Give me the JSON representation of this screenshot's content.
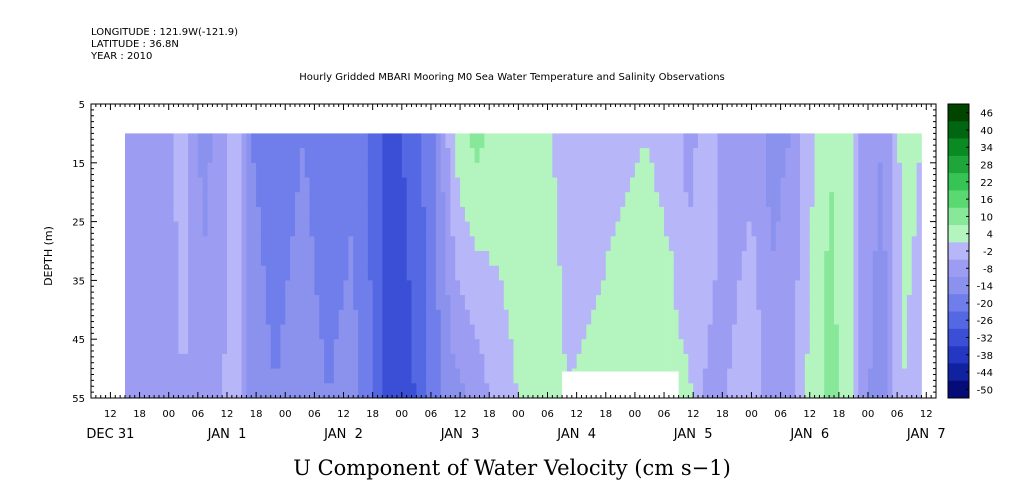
{
  "header": {
    "longitude": "LONGITUDE : 121.9W(-121.9)",
    "latitude": "LATITUDE : 36.8N",
    "year": "YEAR : 2010",
    "title": "Hourly Gridded MBARI Mooring M0 Sea Water Temperature and Salinity Observations"
  },
  "chart_data": {
    "type": "heatmap",
    "title": "Hourly Gridded MBARI Mooring M0 Sea Water Temperature and Salinity Observations",
    "xlabel": "U Component of Water Velocity (cm s−1)",
    "ylabel": "DEPTH (m)",
    "y_reversed": true,
    "ylim": [
      5,
      55
    ],
    "y_ticks": [
      5,
      15,
      25,
      35,
      45,
      55
    ],
    "x_hours_range": [
      -16,
      158
    ],
    "x_ticks": [
      {
        "h": -12,
        "label": "12"
      },
      {
        "h": -6,
        "label": "18"
      },
      {
        "h": 0,
        "label": "00"
      },
      {
        "h": 6,
        "label": "06"
      },
      {
        "h": 12,
        "label": "12"
      },
      {
        "h": 18,
        "label": "18"
      },
      {
        "h": 24,
        "label": "00"
      },
      {
        "h": 30,
        "label": "06"
      },
      {
        "h": 36,
        "label": "12"
      },
      {
        "h": 42,
        "label": "18"
      },
      {
        "h": 48,
        "label": "00"
      },
      {
        "h": 54,
        "label": "06"
      },
      {
        "h": 60,
        "label": "12"
      },
      {
        "h": 66,
        "label": "18"
      },
      {
        "h": 72,
        "label": "00"
      },
      {
        "h": 78,
        "label": "06"
      },
      {
        "h": 84,
        "label": "12"
      },
      {
        "h": 90,
        "label": "18"
      },
      {
        "h": 96,
        "label": "00"
      },
      {
        "h": 102,
        "label": "06"
      },
      {
        "h": 108,
        "label": "12"
      },
      {
        "h": 114,
        "label": "18"
      },
      {
        "h": 120,
        "label": "00"
      },
      {
        "h": 126,
        "label": "06"
      },
      {
        "h": 132,
        "label": "12"
      },
      {
        "h": 138,
        "label": "18"
      },
      {
        "h": 144,
        "label": "00"
      },
      {
        "h": 150,
        "label": "06"
      },
      {
        "h": 156,
        "label": "12"
      }
    ],
    "day_labels": [
      {
        "h": -12,
        "label": "DEC 31"
      },
      {
        "h": 12,
        "label": "JAN  1"
      },
      {
        "h": 36,
        "label": "JAN  2"
      },
      {
        "h": 60,
        "label": "JAN  3"
      },
      {
        "h": 84,
        "label": "JAN  4"
      },
      {
        "h": 108,
        "label": "JAN  5"
      },
      {
        "h": 132,
        "label": "JAN  6"
      },
      {
        "h": 156,
        "label": "JAN  7"
      }
    ],
    "data_extent": {
      "x_start_hour": -9,
      "x_end_hour": 155,
      "depth_top": 10,
      "depth_bottom": 55
    },
    "colorbar_levels": [
      "46",
      "40",
      "34",
      "28",
      "22",
      "16",
      "10",
      "4",
      "-2",
      "-8",
      "-14",
      "-20",
      "-26",
      "-32",
      "-38",
      "-44",
      "-50"
    ],
    "colorbar_colors": [
      "#004400",
      "#006611",
      "#0a8a22",
      "#1ea63a",
      "#36c454",
      "#5ad872",
      "#86e898",
      "#b4f5bf",
      "#b6b6f8",
      "#9c9cf2",
      "#8a92ee",
      "#6f7eea",
      "#5468e4",
      "#3a4fd6",
      "#2337c2",
      "#1022a0",
      "#050c78"
    ],
    "profiles": [
      {
        "h": -9,
        "top": -7,
        "bottom": -5
      },
      {
        "h": -4,
        "top": -8,
        "bottom": -6
      },
      {
        "h": 0,
        "top": -4,
        "bottom": -6
      },
      {
        "h": 3,
        "top": 2,
        "bottom": -2
      },
      {
        "h": 7,
        "top": -10,
        "bottom": -6
      },
      {
        "h": 11,
        "top": -6,
        "bottom": -2
      },
      {
        "h": 14,
        "top": 3,
        "bottom": 1
      },
      {
        "h": 17,
        "top": -14,
        "bottom": -12
      },
      {
        "h": 22,
        "top": -16,
        "bottom": -14
      },
      {
        "h": 28,
        "top": -14,
        "bottom": -12
      },
      {
        "h": 33,
        "top": -17,
        "bottom": -14
      },
      {
        "h": 38,
        "top": -15,
        "bottom": -12
      },
      {
        "h": 42,
        "top": -22,
        "bottom": -20
      },
      {
        "h": 45,
        "top": -30,
        "bottom": -28
      },
      {
        "h": 48,
        "top": -26,
        "bottom": -30
      },
      {
        "h": 52,
        "top": -20,
        "bottom": -24
      },
      {
        "h": 55,
        "top": -14,
        "bottom": -16
      },
      {
        "h": 59,
        "top": 6,
        "bottom": -10
      },
      {
        "h": 63,
        "top": 12,
        "bottom": -6
      },
      {
        "h": 68,
        "top": 8,
        "bottom": 0
      },
      {
        "h": 72,
        "top": 10,
        "bottom": 4
      },
      {
        "h": 76,
        "top": 6,
        "bottom": 8
      },
      {
        "h": 82,
        "top": 2,
        "bottom": 4
      },
      {
        "h": 90,
        "top": 3,
        "bottom": 5
      },
      {
        "h": 98,
        "top": 4,
        "bottom": 6
      },
      {
        "h": 104,
        "top": 3,
        "bottom": 5
      },
      {
        "h": 107,
        "top": -6,
        "bottom": 6
      },
      {
        "h": 111,
        "top": 4,
        "bottom": -4
      },
      {
        "h": 115,
        "top": -8,
        "bottom": -2
      },
      {
        "h": 120,
        "top": -4,
        "bottom": 4
      },
      {
        "h": 124,
        "top": -10,
        "bottom": -6
      },
      {
        "h": 128,
        "top": -8,
        "bottom": -4
      },
      {
        "h": 132,
        "top": 2,
        "bottom": 6
      },
      {
        "h": 136,
        "top": 10,
        "bottom": 12
      },
      {
        "h": 140,
        "top": 6,
        "bottom": 8
      },
      {
        "h": 143,
        "top": -4,
        "bottom": -6
      },
      {
        "h": 147,
        "top": -8,
        "bottom": -12
      },
      {
        "h": 151,
        "top": 6,
        "bottom": 4
      },
      {
        "h": 155,
        "top": 4,
        "bottom": 2
      }
    ],
    "missing_regions": [
      {
        "h_start": 81,
        "h_end": 105,
        "depth_top": 50.5,
        "depth_bottom": 55
      }
    ]
  }
}
